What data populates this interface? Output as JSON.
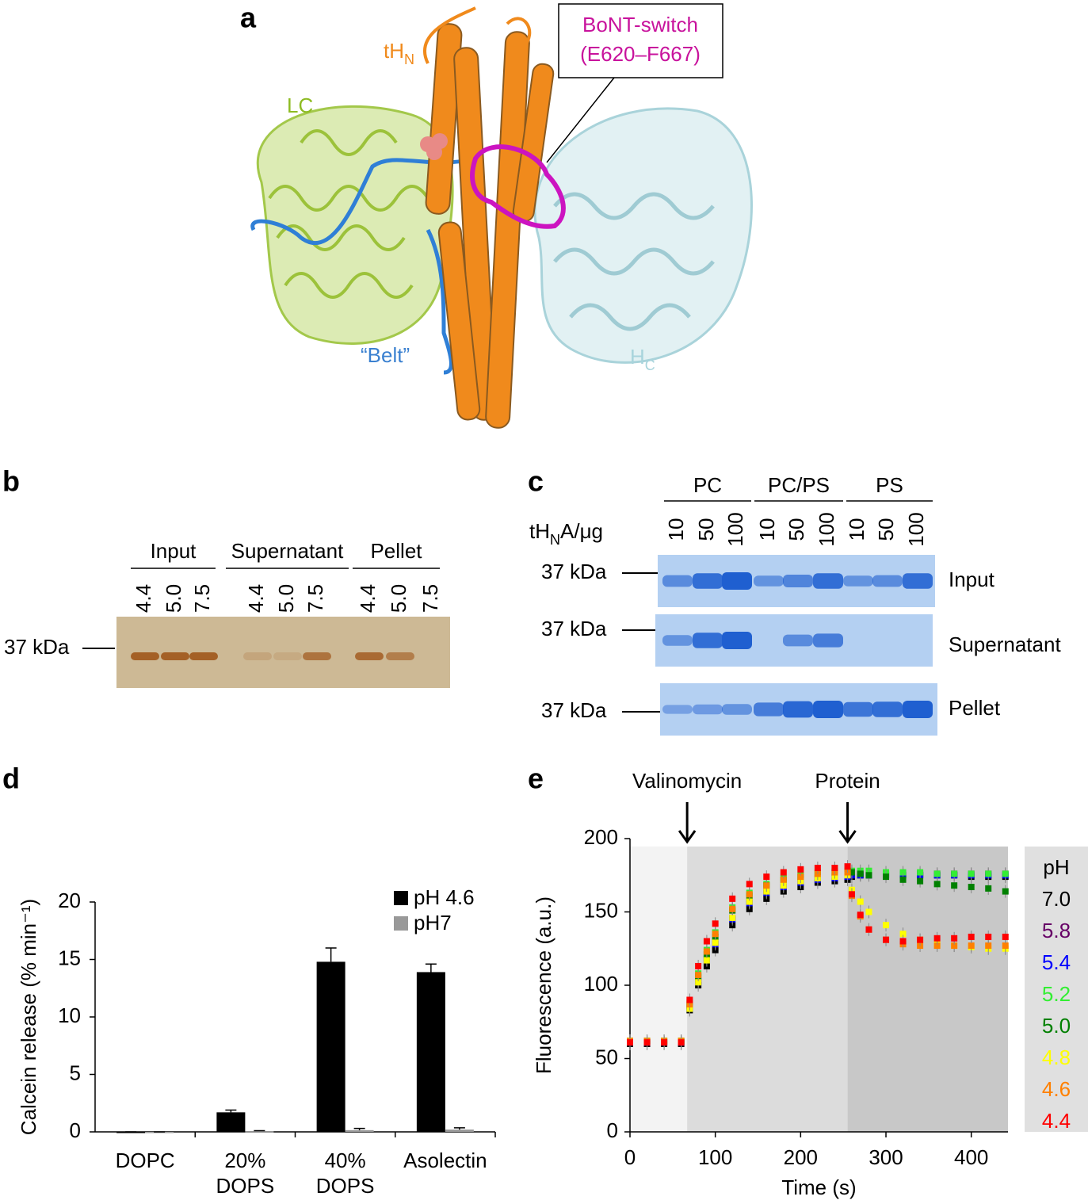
{
  "panel_a": {
    "label": "a",
    "tHN": {
      "text": "tH",
      "sub": "N"
    },
    "LC": "LC",
    "switch": [
      "BoNT-switch",
      "(E620–F667)"
    ],
    "belt": "“Belt”",
    "HC": {
      "text": "H",
      "sub": "C"
    }
  },
  "panel_b": {
    "label": "b",
    "groups": [
      "Input",
      "Supernatant",
      "Pellet"
    ],
    "lanes": [
      "4.4",
      "5.0",
      "7.5"
    ],
    "marker": "37 kDa"
  },
  "panel_c": {
    "label": "c",
    "groups": [
      "PC",
      "PC/PS",
      "PS"
    ],
    "amount_label": {
      "text": "tH",
      "sub": "N",
      "rest": "A/μg"
    },
    "lanes": [
      "10",
      "50",
      "100"
    ],
    "marker": "37 kDa",
    "rows": [
      "Input",
      "Supernatant",
      "Pellet"
    ]
  },
  "chart_data": [
    {
      "type": "bar",
      "panel_label": "d",
      "y_label": "Calcein release (% min⁻¹)",
      "categories": [
        "DOPC",
        "20% DOPS",
        "40% DOPS",
        "Asolectin"
      ],
      "series": [
        {
          "name": "pH 4.6",
          "color": "#000000",
          "values": [
            0,
            1.7,
            14.8,
            13.9
          ],
          "errors": [
            0,
            0.2,
            1.2,
            0.7
          ]
        },
        {
          "name": "pH7",
          "color": "#999999",
          "values": [
            0,
            0.05,
            0.15,
            0.2
          ],
          "errors": [
            0,
            0.05,
            0.15,
            0.15
          ]
        }
      ],
      "ylim": [
        0,
        20
      ],
      "yticks": [
        0,
        5,
        10,
        15,
        20
      ]
    },
    {
      "type": "line",
      "panel_label": "e",
      "x_label": "Time (s)",
      "y_label": "Fluorescence (a.u.)",
      "legend_title": "pH",
      "annotations": [
        {
          "text": "Valinomycin",
          "x": 67
        },
        {
          "text": "Protein",
          "x": 255
        }
      ],
      "x": [
        0,
        20,
        40,
        60,
        70,
        80,
        90,
        100,
        120,
        140,
        160,
        180,
        200,
        220,
        240,
        255,
        260,
        270,
        280,
        300,
        320,
        340,
        360,
        380,
        400,
        420,
        440
      ],
      "series": [
        {
          "name": "7.0",
          "color": "#000000",
          "values": [
            60,
            60,
            60,
            60,
            83,
            100,
            113,
            124,
            141,
            152,
            159,
            164,
            167,
            170,
            171,
            172,
            174,
            175,
            175,
            175,
            175,
            175,
            175,
            175,
            174,
            174,
            174
          ]
        },
        {
          "name": "5.8",
          "color": "#660066",
          "values": [
            61,
            61,
            61,
            61,
            85,
            103,
            118,
            129,
            146,
            157,
            164,
            168,
            171,
            173,
            174,
            175,
            176,
            176,
            176,
            176,
            176,
            176,
            176,
            176,
            176,
            176,
            176
          ]
        },
        {
          "name": "5.4",
          "color": "#0000ff",
          "values": [
            61,
            61,
            61,
            61,
            84,
            102,
            117,
            128,
            145,
            156,
            163,
            167,
            170,
            172,
            173,
            174,
            175,
            175,
            175,
            175,
            175,
            175,
            175,
            175,
            175,
            175,
            175
          ]
        },
        {
          "name": "5.2",
          "color": "#33ee33",
          "values": [
            62,
            62,
            62,
            62,
            88,
            108,
            124,
            136,
            153,
            163,
            169,
            173,
            175,
            177,
            178,
            178,
            178,
            178,
            178,
            177,
            177,
            177,
            176,
            176,
            176,
            176,
            176
          ]
        },
        {
          "name": "5.0",
          "color": "#008000",
          "values": [
            62,
            62,
            62,
            62,
            86,
            106,
            121,
            133,
            151,
            161,
            168,
            172,
            174,
            176,
            177,
            177,
            177,
            176,
            175,
            174,
            172,
            171,
            169,
            168,
            167,
            166,
            164
          ]
        },
        {
          "name": "4.8",
          "color": "#ffff00",
          "values": [
            62,
            62,
            62,
            62,
            84,
            102,
            117,
            129,
            146,
            157,
            164,
            168,
            171,
            173,
            174,
            175,
            165,
            157,
            150,
            141,
            135,
            131,
            128,
            127,
            126,
            125,
            125
          ]
        },
        {
          "name": "4.6",
          "color": "#ff8000",
          "values": [
            62,
            62,
            62,
            62,
            87,
            107,
            123,
            135,
            152,
            162,
            168,
            172,
            174,
            176,
            177,
            177,
            161,
            147,
            138,
            131,
            128,
            127,
            127,
            127,
            127,
            127,
            127
          ]
        },
        {
          "name": "4.4",
          "color": "#ff0000",
          "values": [
            61,
            61,
            61,
            61,
            90,
            113,
            130,
            142,
            159,
            169,
            174,
            177,
            179,
            180,
            180,
            181,
            162,
            148,
            138,
            131,
            130,
            131,
            132,
            132,
            133,
            133,
            133
          ]
        }
      ],
      "xlim": [
        0,
        443
      ],
      "ylim": [
        0,
        200
      ],
      "xticks": [
        0,
        100,
        200,
        300,
        400
      ],
      "yticks": [
        0,
        50,
        100,
        150,
        200
      ]
    }
  ]
}
